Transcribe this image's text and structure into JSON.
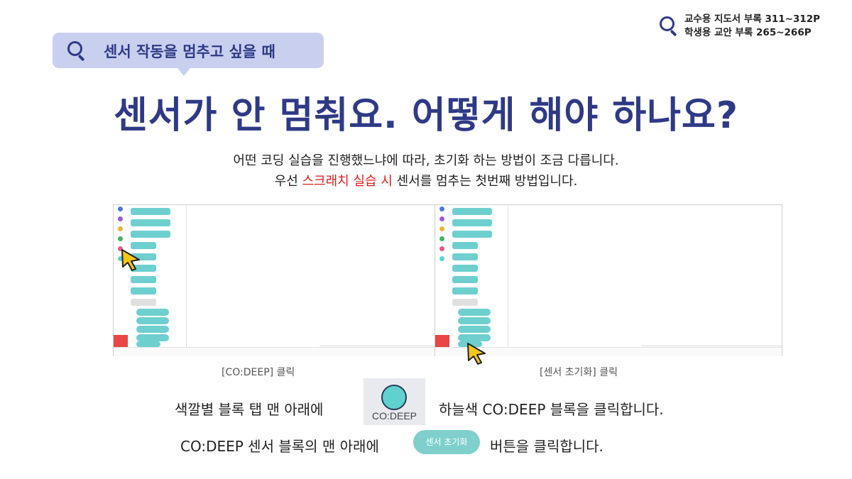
{
  "references": {
    "teacher": "교수용 지도서 부록 311~312P",
    "student": "학생용 교안 부록 265~266P"
  },
  "bubble": {
    "label": "센서 작동을 멈추고 싶을 때"
  },
  "title": "센서가 안 멈춰요. 어떻게 해야 하나요?",
  "subtitle": {
    "line1": "어떤 코딩 실습을 진행했느냐에 따라, 초기화 하는 방법이 조금 다릅니다.",
    "line2_pre": "우선 ",
    "line2_highlight": "스크래치 실습 시",
    "line2_post": " 센서를 멈추는 첫번째 방법입니다."
  },
  "screenshots": {
    "left_caption": "[CO:DEEP] 클릭",
    "right_caption": "[센서 초기화] 클릭"
  },
  "instructions": {
    "row1_pre": "색깔별 블록 탭 맨 아래에",
    "codeep_tile_label": "CO:DEEP",
    "row1_post": "하늘색 CO:DEEP 블록을 클릭합니다.",
    "row2_pre": "CO:DEEP 센서 블록의 맨 아래에",
    "reset_button": "센서 초기화",
    "row2_post": "버튼을 클릭합니다."
  },
  "colors": {
    "accent": "#2f3a86",
    "bubble": "#c9d0ef",
    "highlight": "#e21b1b",
    "block": "#6ecfcf"
  }
}
